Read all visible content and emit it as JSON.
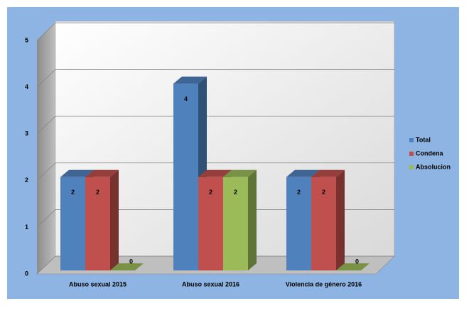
{
  "chart_data": {
    "type": "bar3d",
    "categories": [
      "Abuso sexual 2015",
      "Abuso sexual 2016",
      "Violencia de género 2016"
    ],
    "series": [
      {
        "name": "Total",
        "color": "#4f81bd",
        "values": [
          2,
          4,
          2
        ]
      },
      {
        "name": "Condena",
        "color": "#c0504d",
        "values": [
          2,
          2,
          2
        ]
      },
      {
        "name": "Absolucion",
        "color": "#9bbb59",
        "values": [
          0,
          2,
          0
        ]
      }
    ],
    "ylim": [
      0,
      5
    ],
    "yticks": [
      0,
      1,
      2,
      3,
      4,
      5
    ],
    "grid": true,
    "legend": "right"
  }
}
